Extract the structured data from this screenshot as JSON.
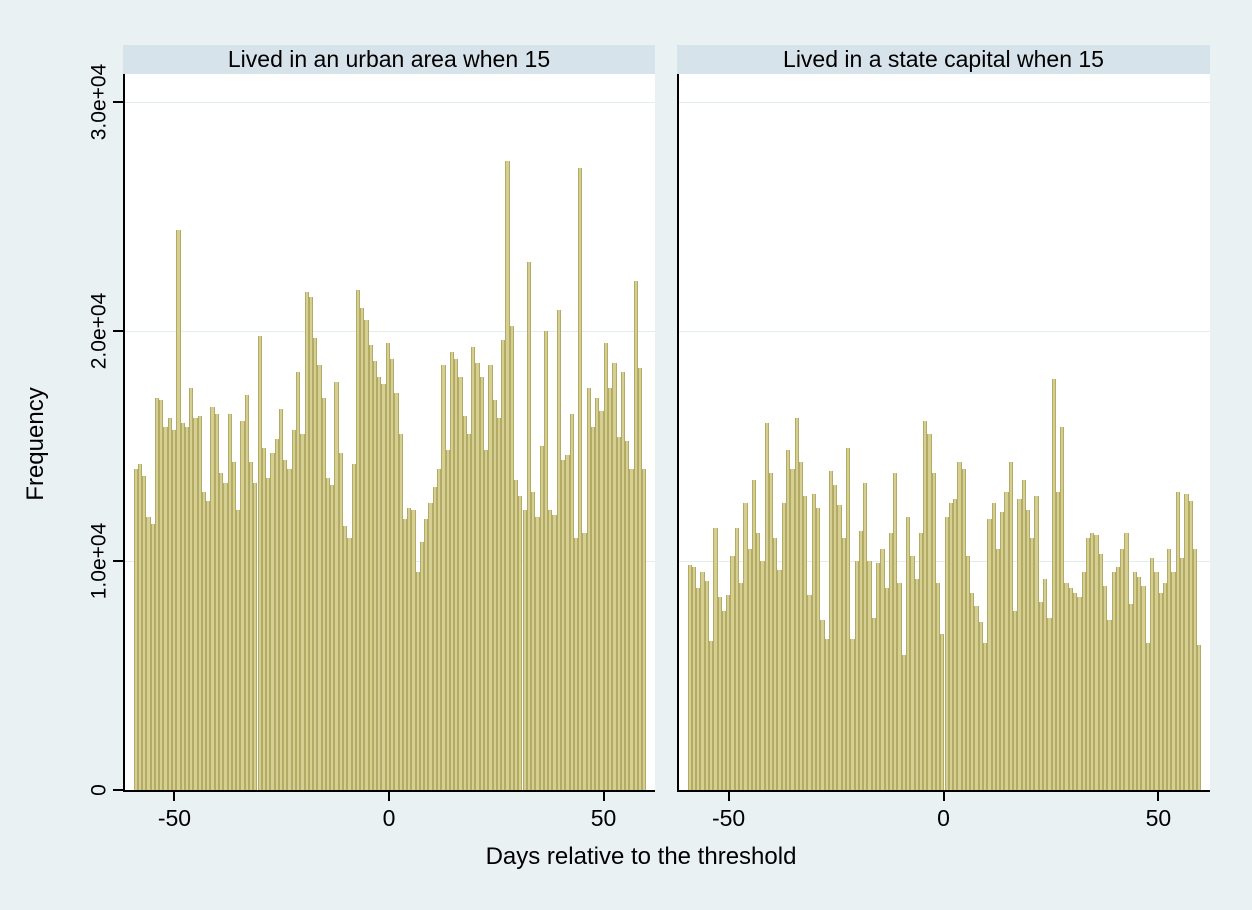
{
  "figure": {
    "background": "#e9f1f2",
    "plot_background": "#ffffff",
    "title_band_background": "#d7e3ea",
    "bar_fill": "#d6cf92",
    "bar_border": "#b2aa65",
    "gridline_color": "#e2edef",
    "axis_color": "#000000"
  },
  "axes": {
    "y_label": "Frequency",
    "x_label": "Days relative to the threshold",
    "y_ticks": [
      {
        "value": 0,
        "label": "0"
      },
      {
        "value": 10000,
        "label": "1.0e+04"
      },
      {
        "value": 20000,
        "label": "2.0e+04"
      },
      {
        "value": 30000,
        "label": "3.0e+04"
      }
    ],
    "x_ticks": [
      {
        "value": -50,
        "label": "-50"
      },
      {
        "value": 0,
        "label": "0"
      },
      {
        "value": 50,
        "label": "50"
      }
    ],
    "xlim": [
      -62,
      62
    ],
    "ylim": [
      0,
      31200
    ],
    "grid": true
  },
  "chart_data": [
    {
      "type": "bar",
      "title": "Lived in an urban area when 15",
      "xlabel": "Days relative to the threshold",
      "ylabel": "Frequency",
      "bin_start": -60,
      "bin_width": 1,
      "values": [
        14000,
        14200,
        13700,
        11900,
        11600,
        17100,
        17000,
        15800,
        16200,
        15700,
        24400,
        16000,
        15800,
        17500,
        16200,
        16300,
        13000,
        12600,
        16700,
        16400,
        13800,
        13400,
        16400,
        14300,
        12200,
        16100,
        17200,
        14300,
        13400,
        19800,
        14900,
        13600,
        14700,
        15300,
        16600,
        14400,
        14000,
        15700,
        18200,
        15500,
        21700,
        21500,
        19700,
        18500,
        17100,
        13600,
        13300,
        17800,
        14700,
        11500,
        11000,
        14200,
        21800,
        21000,
        20500,
        19400,
        18700,
        18000,
        17700,
        19500,
        18800,
        17300,
        15500,
        11800,
        12300,
        12200,
        9500,
        10800,
        11800,
        12500,
        13200,
        14000,
        18500,
        14800,
        19100,
        18800,
        18000,
        16300,
        15500,
        19300,
        18600,
        18000,
        14800,
        18500,
        17000,
        16200,
        19600,
        27400,
        20200,
        13500,
        12800,
        12200,
        23000,
        13000,
        11900,
        15000,
        20000,
        12200,
        12000,
        20900,
        14400,
        14600,
        16400,
        11000,
        27100,
        11200,
        17500,
        15800,
        17100,
        16500,
        19500,
        17500,
        18600,
        15400,
        18200,
        15200,
        14000,
        22200,
        18400,
        14000
      ]
    },
    {
      "type": "bar",
      "title": "Lived in a state capital when 15",
      "xlabel": "Days relative to the threshold",
      "ylabel": "Frequency",
      "bin_start": -60,
      "bin_width": 1,
      "values": [
        9800,
        9700,
        8800,
        9500,
        9100,
        6500,
        11400,
        8400,
        7800,
        8500,
        10200,
        11400,
        9000,
        12500,
        10500,
        13500,
        11200,
        10000,
        16000,
        13800,
        11000,
        9600,
        12500,
        14800,
        14000,
        16200,
        14300,
        12800,
        8500,
        12900,
        12300,
        7400,
        6600,
        13900,
        13300,
        12400,
        11000,
        14900,
        6600,
        10000,
        11300,
        13400,
        10000,
        7500,
        9900,
        10500,
        8800,
        11200,
        13800,
        9000,
        5900,
        11900,
        10200,
        9200,
        11200,
        16100,
        15500,
        13800,
        9000,
        6800,
        11900,
        12500,
        12700,
        14300,
        14000,
        10200,
        8600,
        8000,
        7300,
        6400,
        11800,
        12500,
        10500,
        12100,
        13000,
        14300,
        7800,
        12700,
        13500,
        12200,
        11000,
        12800,
        8200,
        9200,
        7500,
        17900,
        13000,
        15800,
        9000,
        8800,
        8600,
        8400,
        9500,
        11000,
        11200,
        11100,
        10300,
        8900,
        7400,
        9500,
        9700,
        10500,
        11200,
        8100,
        9500,
        9300,
        8900,
        6400,
        10100,
        9500,
        8600,
        9000,
        10500,
        9500,
        13000,
        10100,
        12900,
        12600,
        10500,
        6300
      ]
    }
  ]
}
